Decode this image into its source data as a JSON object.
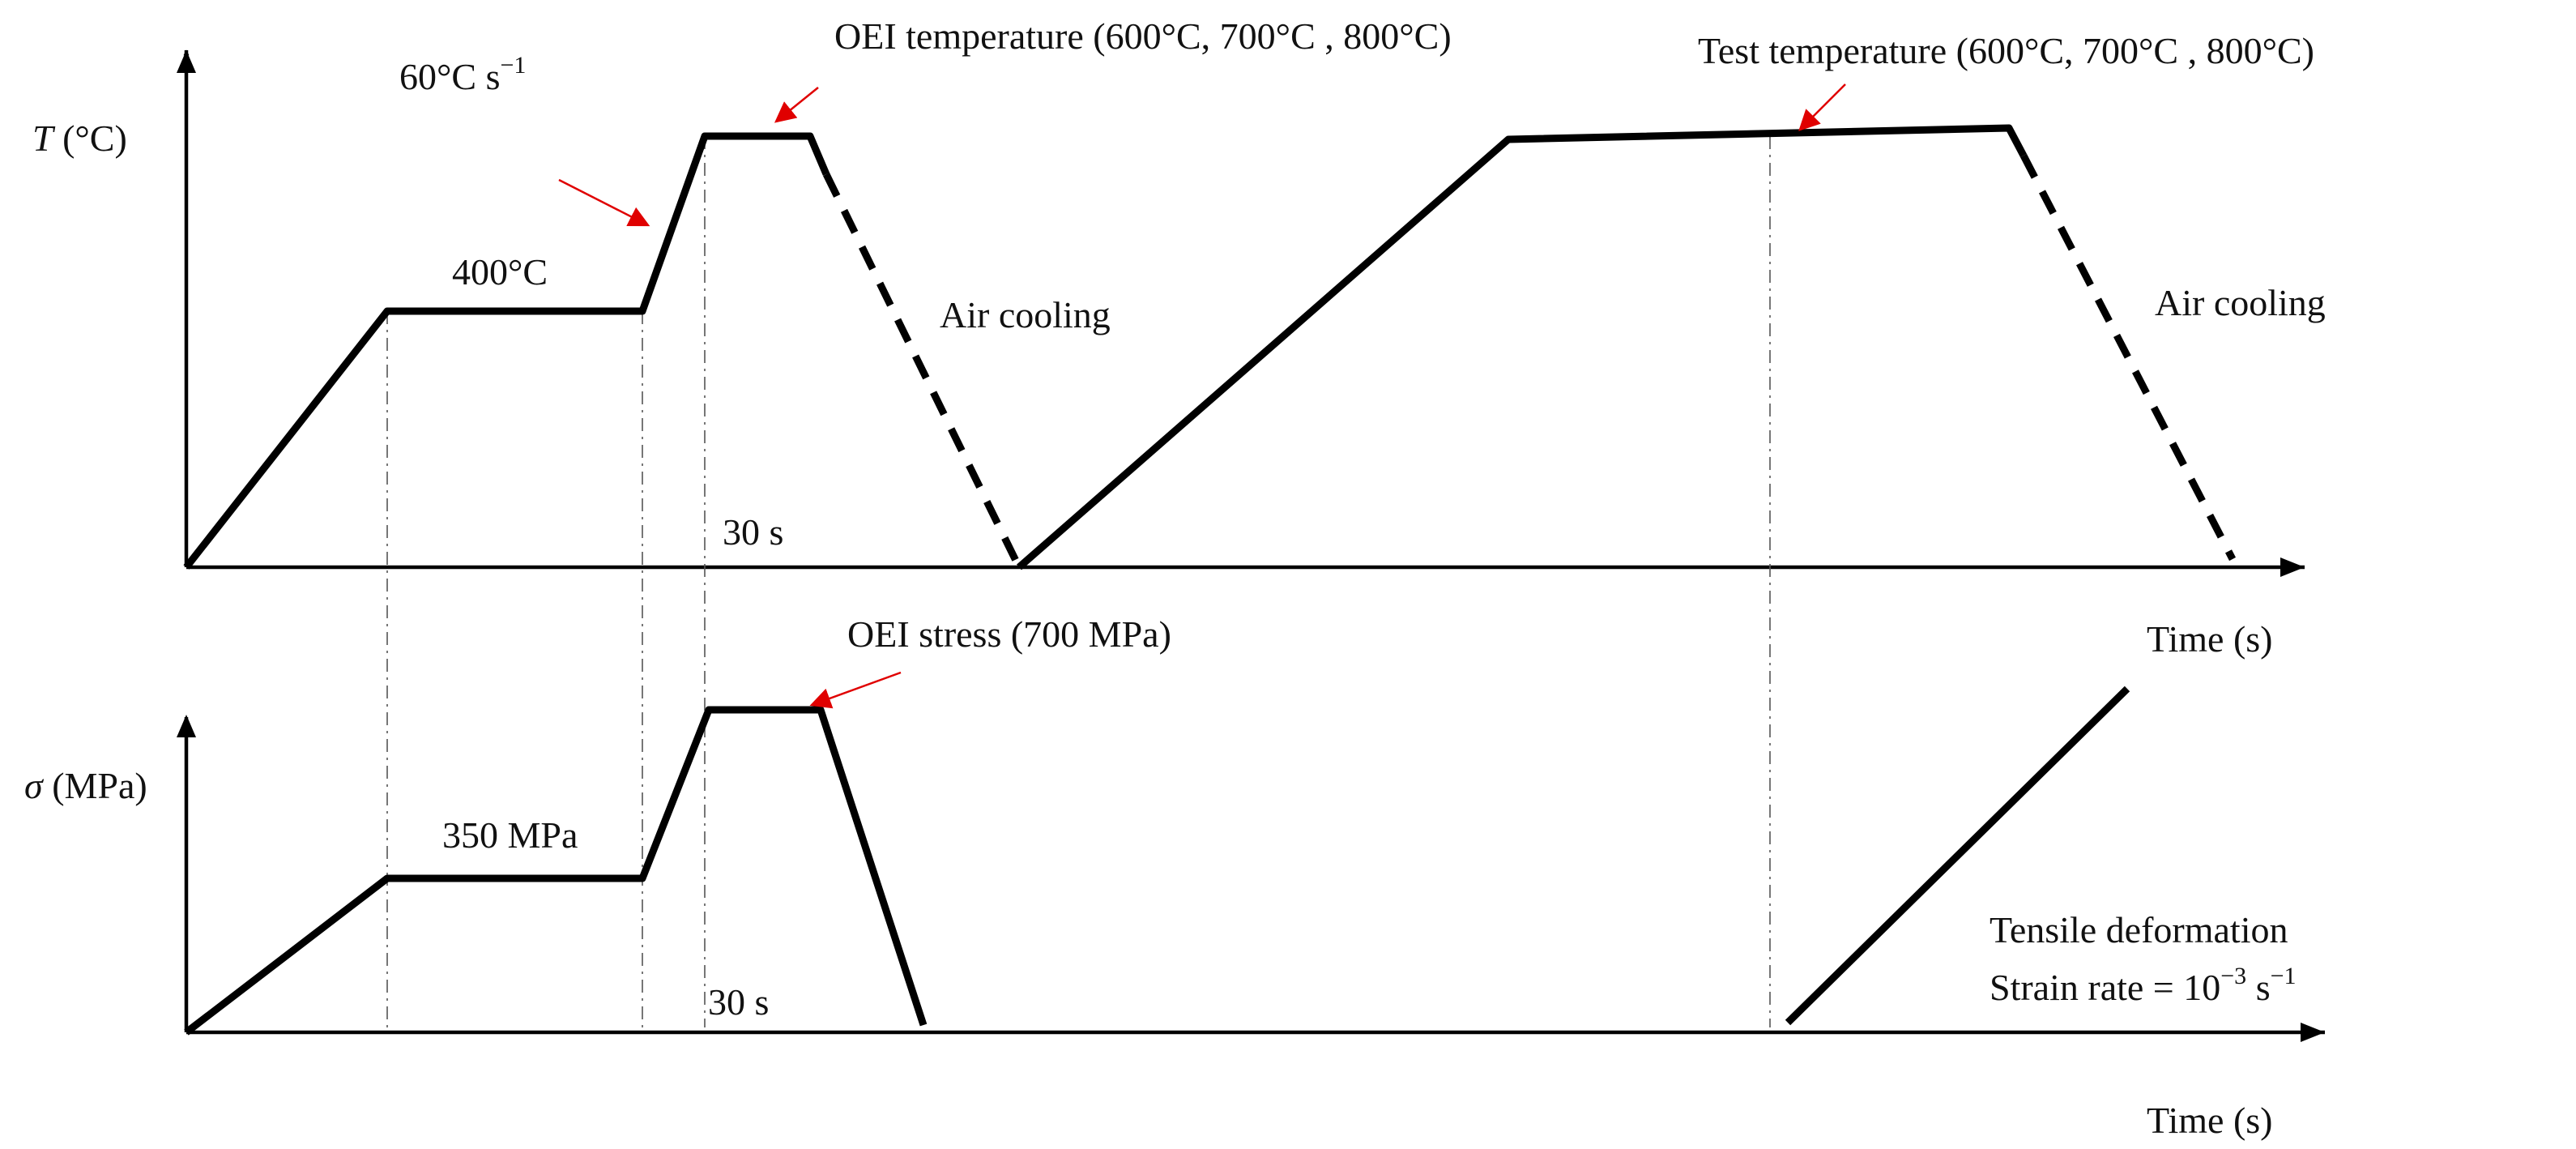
{
  "colors": {
    "line": "#000000",
    "pointer": "#e00000",
    "guide": "#555555",
    "background": "#ffffff"
  },
  "top_panel": {
    "y_axis_var": "T",
    "y_axis_unit": " (°C)",
    "x_axis_label": "Time (s)",
    "heating_rate": "60°C s",
    "heating_rate_exp": "−1",
    "preheat_temp": "400°C",
    "oei_temperature": "OEI temperature (600°C, 700°C , 800°C)",
    "hold_time": "30 s",
    "air_cooling_1": "Air cooling",
    "test_temperature": "Test temperature (600°C, 700°C , 800°C)",
    "air_cooling_2": "Air cooling"
  },
  "bottom_panel": {
    "y_axis_var": "σ",
    "y_axis_unit": " (MPa)",
    "x_axis_label": "Time (s)",
    "oei_stress": "OEI stress (700 MPa)",
    "preload_stress": "350 MPa",
    "hold_time": "30 s",
    "tensile_deformation": "Tensile deformation",
    "strain_rate_prefix": "Strain rate = 10",
    "strain_rate_exp": "−3",
    "strain_rate_suffix": " s",
    "strain_rate_suffix_exp": "−1"
  }
}
